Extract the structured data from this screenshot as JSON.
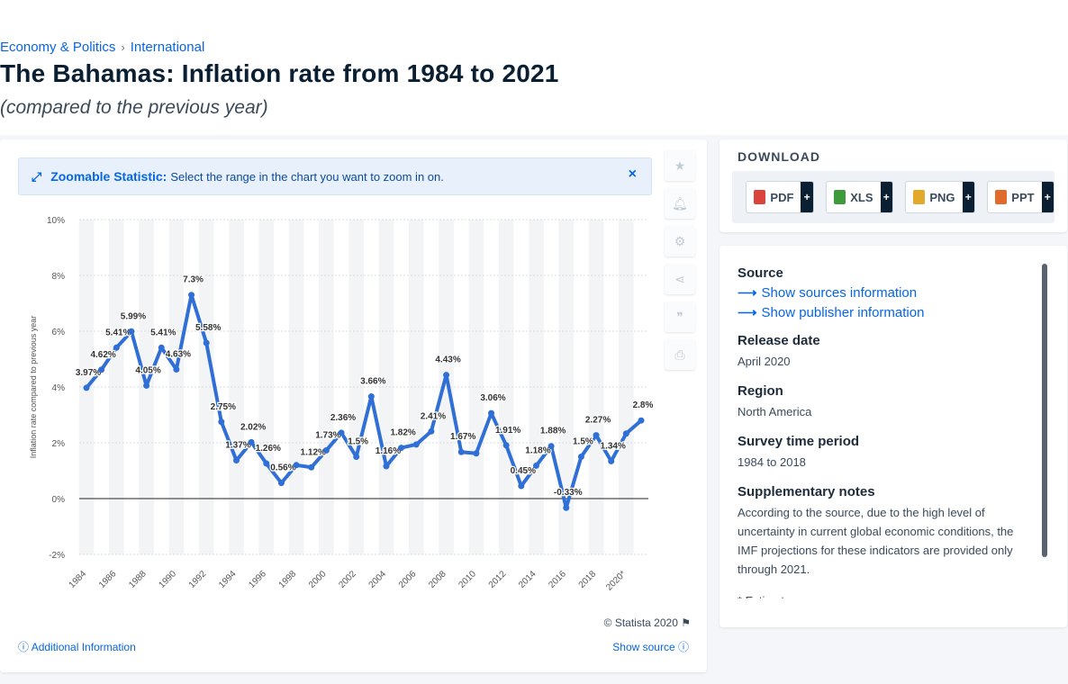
{
  "breadcrumb": {
    "items": [
      "Economy & Politics",
      "International"
    ],
    "separator": "›"
  },
  "title": "The Bahamas: Inflation rate from 1984 to 2021",
  "subtitle": "(compared to the previous year)",
  "zoom_banner": {
    "title": "Zoomable Statistic:",
    "text": "Select the range in the chart you want to zoom in on.",
    "close": "×"
  },
  "tools": [
    "star-icon",
    "bell-icon",
    "gear-icon",
    "share-icon",
    "quote-icon",
    "print-icon"
  ],
  "footer": {
    "copyright": "© Statista 2020",
    "additional_info": "Additional Information",
    "show_source": "Show source"
  },
  "download": {
    "title": "DOWNLOAD",
    "buttons": [
      {
        "label": "PDF",
        "color": "#d9453d"
      },
      {
        "label": "XLS",
        "color": "#3f9a3e"
      },
      {
        "label": "PNG",
        "color": "#e2a92b"
      },
      {
        "label": "PPT",
        "color": "#e06b2b"
      }
    ],
    "plus": "+"
  },
  "info": {
    "source_heading": "Source",
    "source_link": "Show sources information",
    "publisher_link": "Show publisher information",
    "release_heading": "Release date",
    "release_value": "April 2020",
    "region_heading": "Region",
    "region_value": "North America",
    "survey_heading": "Survey time period",
    "survey_value": "1984 to 2018",
    "notes_heading": "Supplementary notes",
    "notes_value": "According to the source, due to the high level of uncertainty in current global economic conditions, the IMF projections for these indicators are provided only through 2021.",
    "estimate_note": "* Estimate"
  },
  "chart_data": {
    "type": "line",
    "ylabel": "Inflation rate compared to previous year",
    "xlabel": "",
    "ylim": [
      -2,
      10
    ],
    "yticks": [
      -2,
      0,
      2,
      4,
      6,
      8,
      10
    ],
    "ytick_labels": [
      "-2%",
      "0%",
      "2%",
      "4%",
      "6%",
      "8%",
      "10%"
    ],
    "x": [
      1984,
      1985,
      1986,
      1987,
      1988,
      1989,
      1990,
      1991,
      1992,
      1993,
      1994,
      1995,
      1996,
      1997,
      1998,
      1999,
      2000,
      2001,
      2002,
      2003,
      2004,
      2005,
      2006,
      2007,
      2008,
      2009,
      2010,
      2011,
      2012,
      2013,
      2014,
      2015,
      2016,
      2017,
      2018,
      2019,
      2020,
      2021
    ],
    "xtick_labels": [
      "1984",
      "1986",
      "1988",
      "1990",
      "1992",
      "1994",
      "1996",
      "1998",
      "2000",
      "2002",
      "2004",
      "2006",
      "2008",
      "2010",
      "2012",
      "2014",
      "2016",
      "2018",
      "2020*"
    ],
    "xtick_years": [
      1984,
      1986,
      1988,
      1990,
      1992,
      1994,
      1996,
      1998,
      2000,
      2002,
      2004,
      2006,
      2008,
      2010,
      2012,
      2014,
      2016,
      2018,
      2020
    ],
    "values": [
      3.97,
      4.62,
      5.41,
      5.99,
      4.05,
      5.41,
      4.63,
      7.3,
      5.58,
      2.75,
      1.37,
      2.02,
      1.26,
      0.56,
      1.2,
      1.12,
      1.73,
      2.36,
      1.5,
      3.66,
      1.16,
      1.82,
      1.94,
      2.41,
      4.43,
      1.67,
      1.62,
      3.06,
      1.91,
      0.45,
      1.18,
      1.88,
      -0.33,
      1.5,
      2.27,
      1.34,
      2.33,
      2.8
    ],
    "labels": [
      "3.97%",
      "4.62%",
      "5.41%",
      "5.99%",
      "4.05%",
      "5.41%",
      "4.63%",
      "7.3%",
      "5.58%",
      "2.75%",
      "1.37%",
      "2.02%",
      "1.26%",
      "0.56%",
      "",
      "1.12%",
      "1.73%",
      "2.36%",
      "1.5%",
      "3.66%",
      "1.16%",
      "1.82%",
      "",
      "2.41%",
      "4.43%",
      "1.67%",
      "",
      "3.06%",
      "1.91%",
      "0.45%",
      "1.18%",
      "1.88%",
      "-0.33%",
      "1.5%",
      "2.27%",
      "1.34%",
      "",
      "2.8%"
    ],
    "line_color": "#2f6fd6",
    "grid": true,
    "legend": "none"
  }
}
